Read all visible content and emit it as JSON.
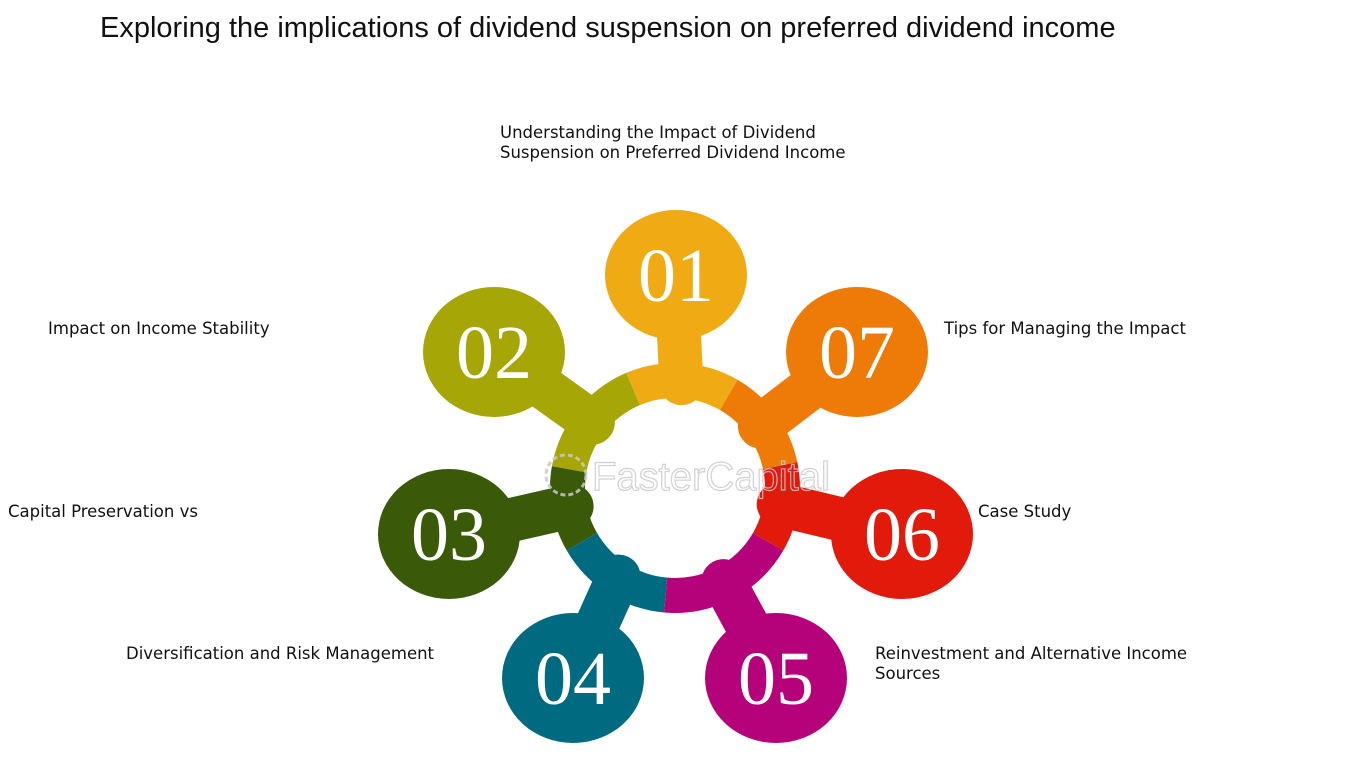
{
  "title": "Exploring the implications of dividend suspension on preferred dividend income",
  "watermark": "FasterCapital",
  "steps": [
    {
      "number": "01",
      "lines": [
        "Understanding the Impact of Dividend",
        "Suspension on Preferred Dividend Income"
      ],
      "color": "#F0AA14"
    },
    {
      "number": "02",
      "lines": [
        "Impact on Income Stability"
      ],
      "color": "#A6A606"
    },
    {
      "number": "03",
      "lines": [
        "Capital Preservation vs"
      ],
      "color": "#3A5A0A"
    },
    {
      "number": "04",
      "lines": [
        "Diversification and Risk Management"
      ],
      "color": "#006A80"
    },
    {
      "number": "05",
      "lines": [
        "Reinvestment and Alternative Income",
        "Sources"
      ],
      "color": "#B5027A"
    },
    {
      "number": "06",
      "lines": [
        "Case Study"
      ],
      "color": "#E11A0C"
    },
    {
      "number": "07",
      "lines": [
        "Tips for Managing the Impact"
      ],
      "color": "#EE7A08"
    }
  ]
}
